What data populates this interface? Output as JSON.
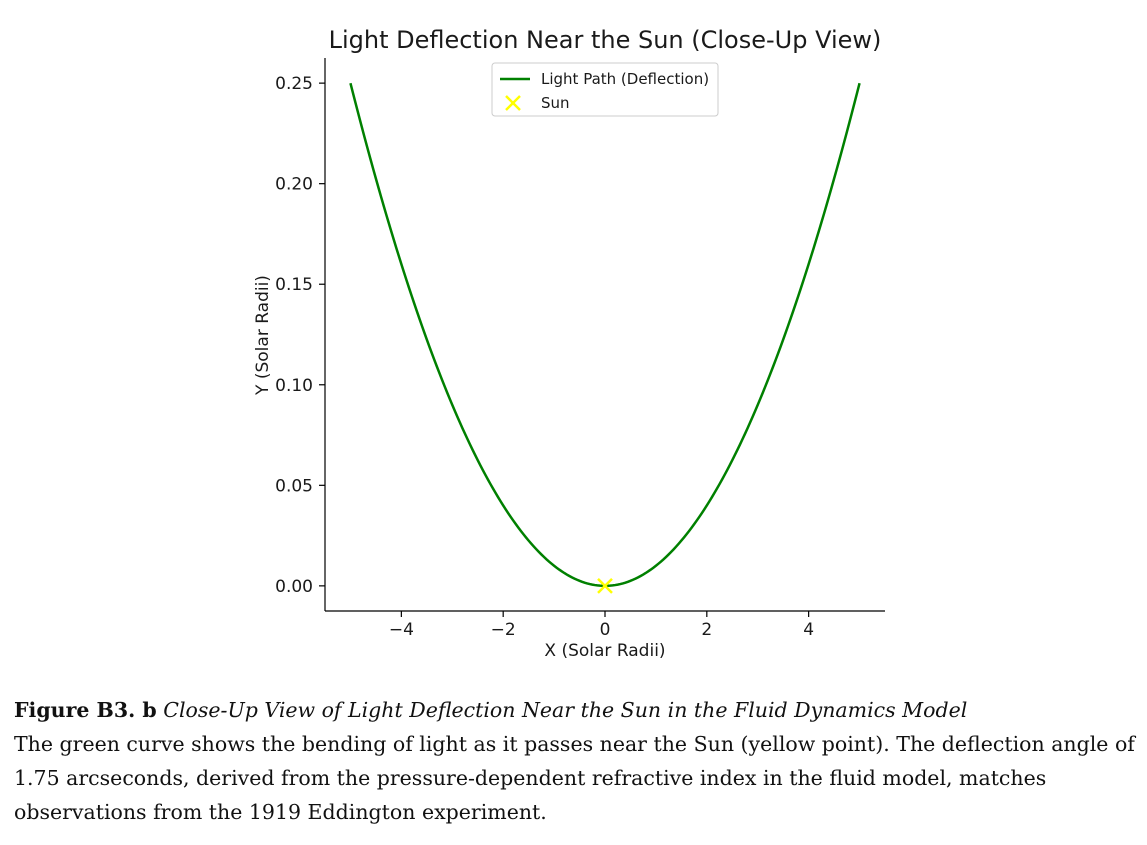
{
  "chart_data": {
    "type": "line",
    "title": "Light Deflection Near the Sun (Close-Up View)",
    "xlabel": "X (Solar Radii)",
    "ylabel": "Y (Solar Radii)",
    "xlim": [
      -5.5,
      5.5
    ],
    "ylim": [
      -0.0125,
      0.2625
    ],
    "xticks": [
      -4,
      -2,
      0,
      2,
      4
    ],
    "xtick_labels": [
      "−4",
      "−2",
      "0",
      "2",
      "4"
    ],
    "yticks": [
      0.0,
      0.05,
      0.1,
      0.15,
      0.2,
      0.25
    ],
    "ytick_labels": [
      "0.00",
      "0.05",
      "0.10",
      "0.15",
      "0.20",
      "0.25"
    ],
    "grid": false,
    "legend_position": "top-center",
    "series": [
      {
        "name": "Light Path (Deflection)",
        "color": "#008000",
        "kind": "line",
        "x": [
          -5,
          -4.5,
          -4,
          -3.5,
          -3,
          -2.5,
          -2,
          -1.5,
          -1,
          -0.5,
          0,
          0.5,
          1,
          1.5,
          2,
          2.5,
          3,
          3.5,
          4,
          4.5,
          5
        ],
        "y": [
          0.25,
          0.2025,
          0.16,
          0.1225,
          0.09,
          0.0625,
          0.04,
          0.0225,
          0.01,
          0.0025,
          0,
          0.0025,
          0.01,
          0.0225,
          0.04,
          0.0625,
          0.09,
          0.1225,
          0.16,
          0.2025,
          0.25
        ]
      },
      {
        "name": "Sun",
        "color": "#ffff00",
        "kind": "marker-x",
        "x": [
          0
        ],
        "y": [
          0
        ]
      }
    ]
  },
  "caption": {
    "label": "Figure B3. b",
    "subtitle": "Close-Up View of Light Deflection Near the Sun in the Fluid Dynamics Model",
    "body": "The green curve shows the bending of light as it passes near the Sun (yellow point). The deflection angle of 1.75 arcseconds, derived from the pressure-dependent refractive index in the fluid model, matches observations from the 1919 Eddington experiment."
  }
}
